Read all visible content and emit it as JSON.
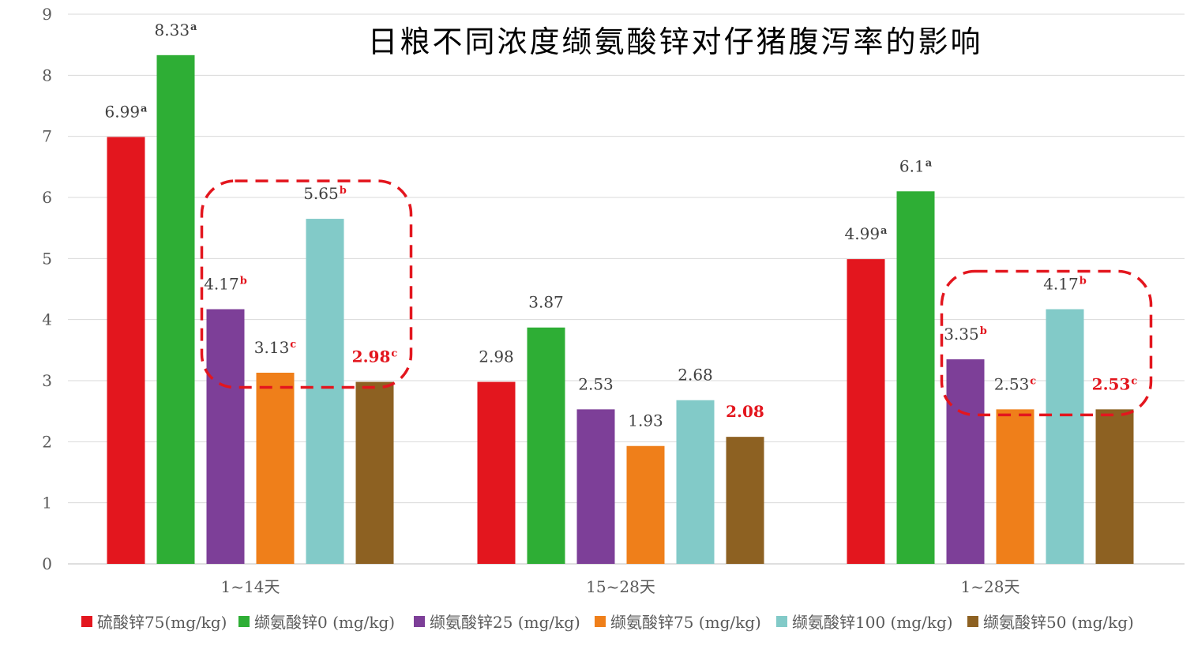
{
  "chart_data": {
    "type": "bar",
    "title": "日粮不同浓度缬氨酸锌对仔猪腹泻率的影响",
    "xlabel": "",
    "ylabel": "",
    "ylim": [
      0,
      9
    ],
    "yticks": [
      0,
      1,
      2,
      3,
      4,
      5,
      6,
      7,
      8,
      9
    ],
    "grid": true,
    "legend_position": "bottom",
    "categories": [
      "1~14天",
      "15~28天",
      "1~28天"
    ],
    "series": [
      {
        "name": "硫酸锌75(mg/kg)",
        "color": "#e3161e",
        "values": [
          6.99,
          2.98,
          4.99
        ],
        "labels": [
          "6.99",
          "2.98",
          "4.99"
        ],
        "sup": [
          "a",
          "",
          "a"
        ]
      },
      {
        "name": "缬氨酸锌0 (mg/kg)",
        "color": "#2eae35",
        "values": [
          8.33,
          3.87,
          6.1
        ],
        "labels": [
          "8.33",
          "3.87",
          "6.1"
        ],
        "sup": [
          "a",
          "",
          "a"
        ]
      },
      {
        "name": "缬氨酸锌25 (mg/kg)",
        "color": "#7d3f98",
        "values": [
          4.17,
          2.53,
          3.35
        ],
        "labels": [
          "4.17",
          "2.53",
          "3.35"
        ],
        "sup": [
          "b",
          "",
          "b"
        ]
      },
      {
        "name": "缬氨酸锌75 (mg/kg)",
        "color": "#ef7f1a",
        "values": [
          3.13,
          1.93,
          2.53
        ],
        "labels": [
          "3.13",
          "1.93",
          "2.53"
        ],
        "sup": [
          "c",
          "",
          "c"
        ]
      },
      {
        "name": "缬氨酸锌100 (mg/kg)",
        "color": "#82cac8",
        "values": [
          5.65,
          2.68,
          4.17
        ],
        "labels": [
          "5.65",
          "2.68",
          "4.17"
        ],
        "sup": [
          "b",
          "",
          "b"
        ]
      },
      {
        "name": "缬氨酸锌50 (mg/kg)",
        "color": "#8d6122",
        "values": [
          2.98,
          2.08,
          2.53
        ],
        "labels": [
          "2.98",
          "2.08",
          "2.53"
        ],
        "sup": [
          "c",
          "",
          "c"
        ],
        "label_color": "#e3161e"
      }
    ],
    "highlight_boxes": [
      {
        "category": "1~14天",
        "from_series": 2,
        "to_series": 5,
        "color": "#e3161e",
        "style": "dashed"
      },
      {
        "category": "1~28天",
        "from_series": 2,
        "to_series": 5,
        "color": "#e3161e",
        "style": "dashed"
      }
    ]
  }
}
